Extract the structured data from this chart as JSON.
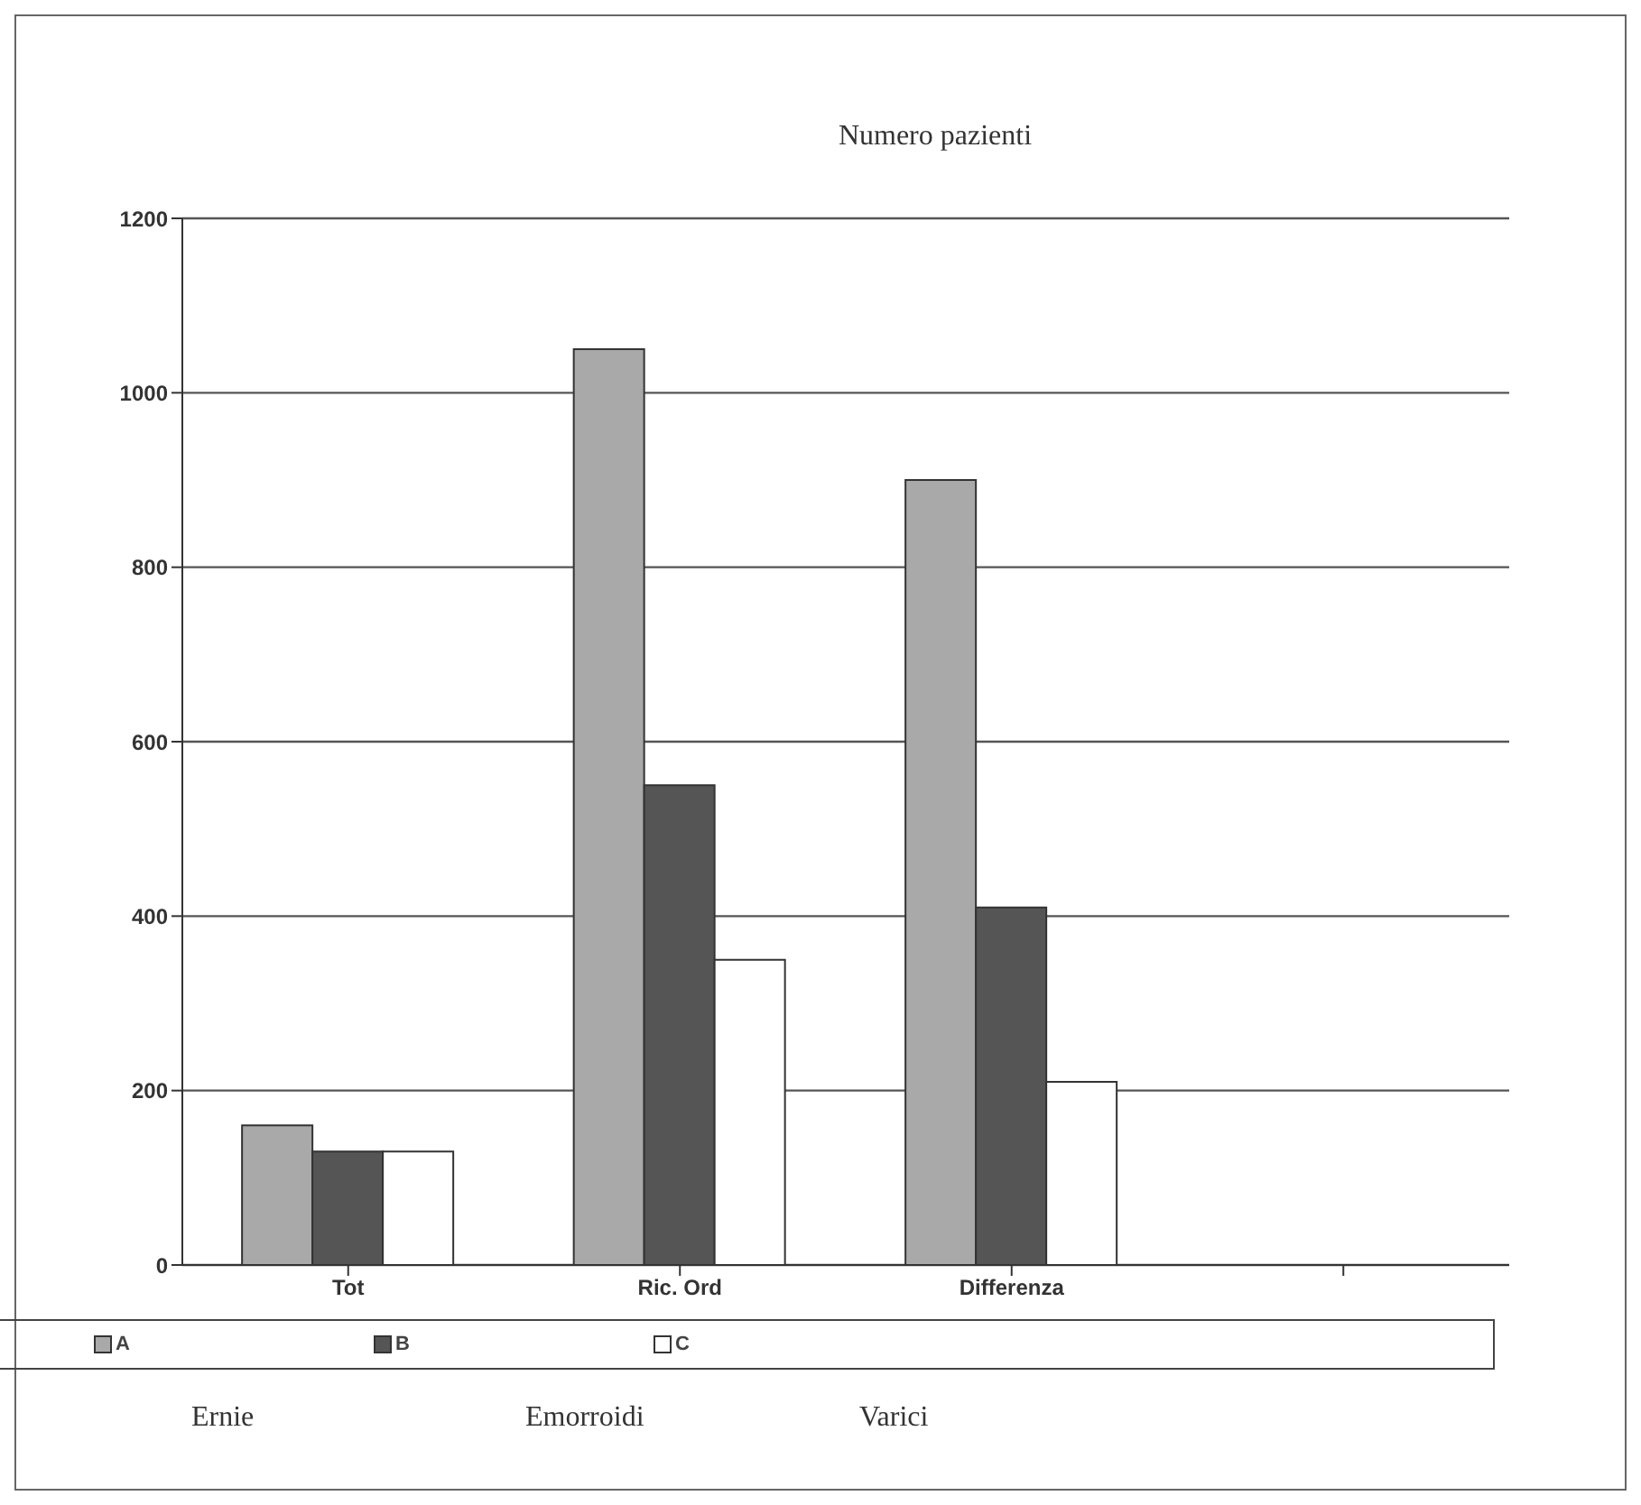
{
  "chart_data": {
    "type": "bar",
    "title": "Numero pazienti",
    "categories": [
      "Tot",
      "Ric. Ord",
      "Differenza",
      null
    ],
    "series": [
      {
        "name": "A",
        "color": "#a9a9a9",
        "values": [
          160,
          1050,
          900,
          null
        ]
      },
      {
        "name": "B",
        "color": "#555555",
        "values": [
          130,
          550,
          410,
          null
        ]
      },
      {
        "name": "C",
        "color": "#ffffff",
        "values": [
          130,
          350,
          210,
          null
        ]
      }
    ],
    "ylim": [
      0,
      1200
    ],
    "yticks": [
      0,
      200,
      400,
      600,
      800,
      1000,
      1200
    ],
    "grid": "y",
    "legend": "bottom",
    "annotations": [
      "Ernie",
      "Emorroidi",
      "Varici"
    ]
  }
}
